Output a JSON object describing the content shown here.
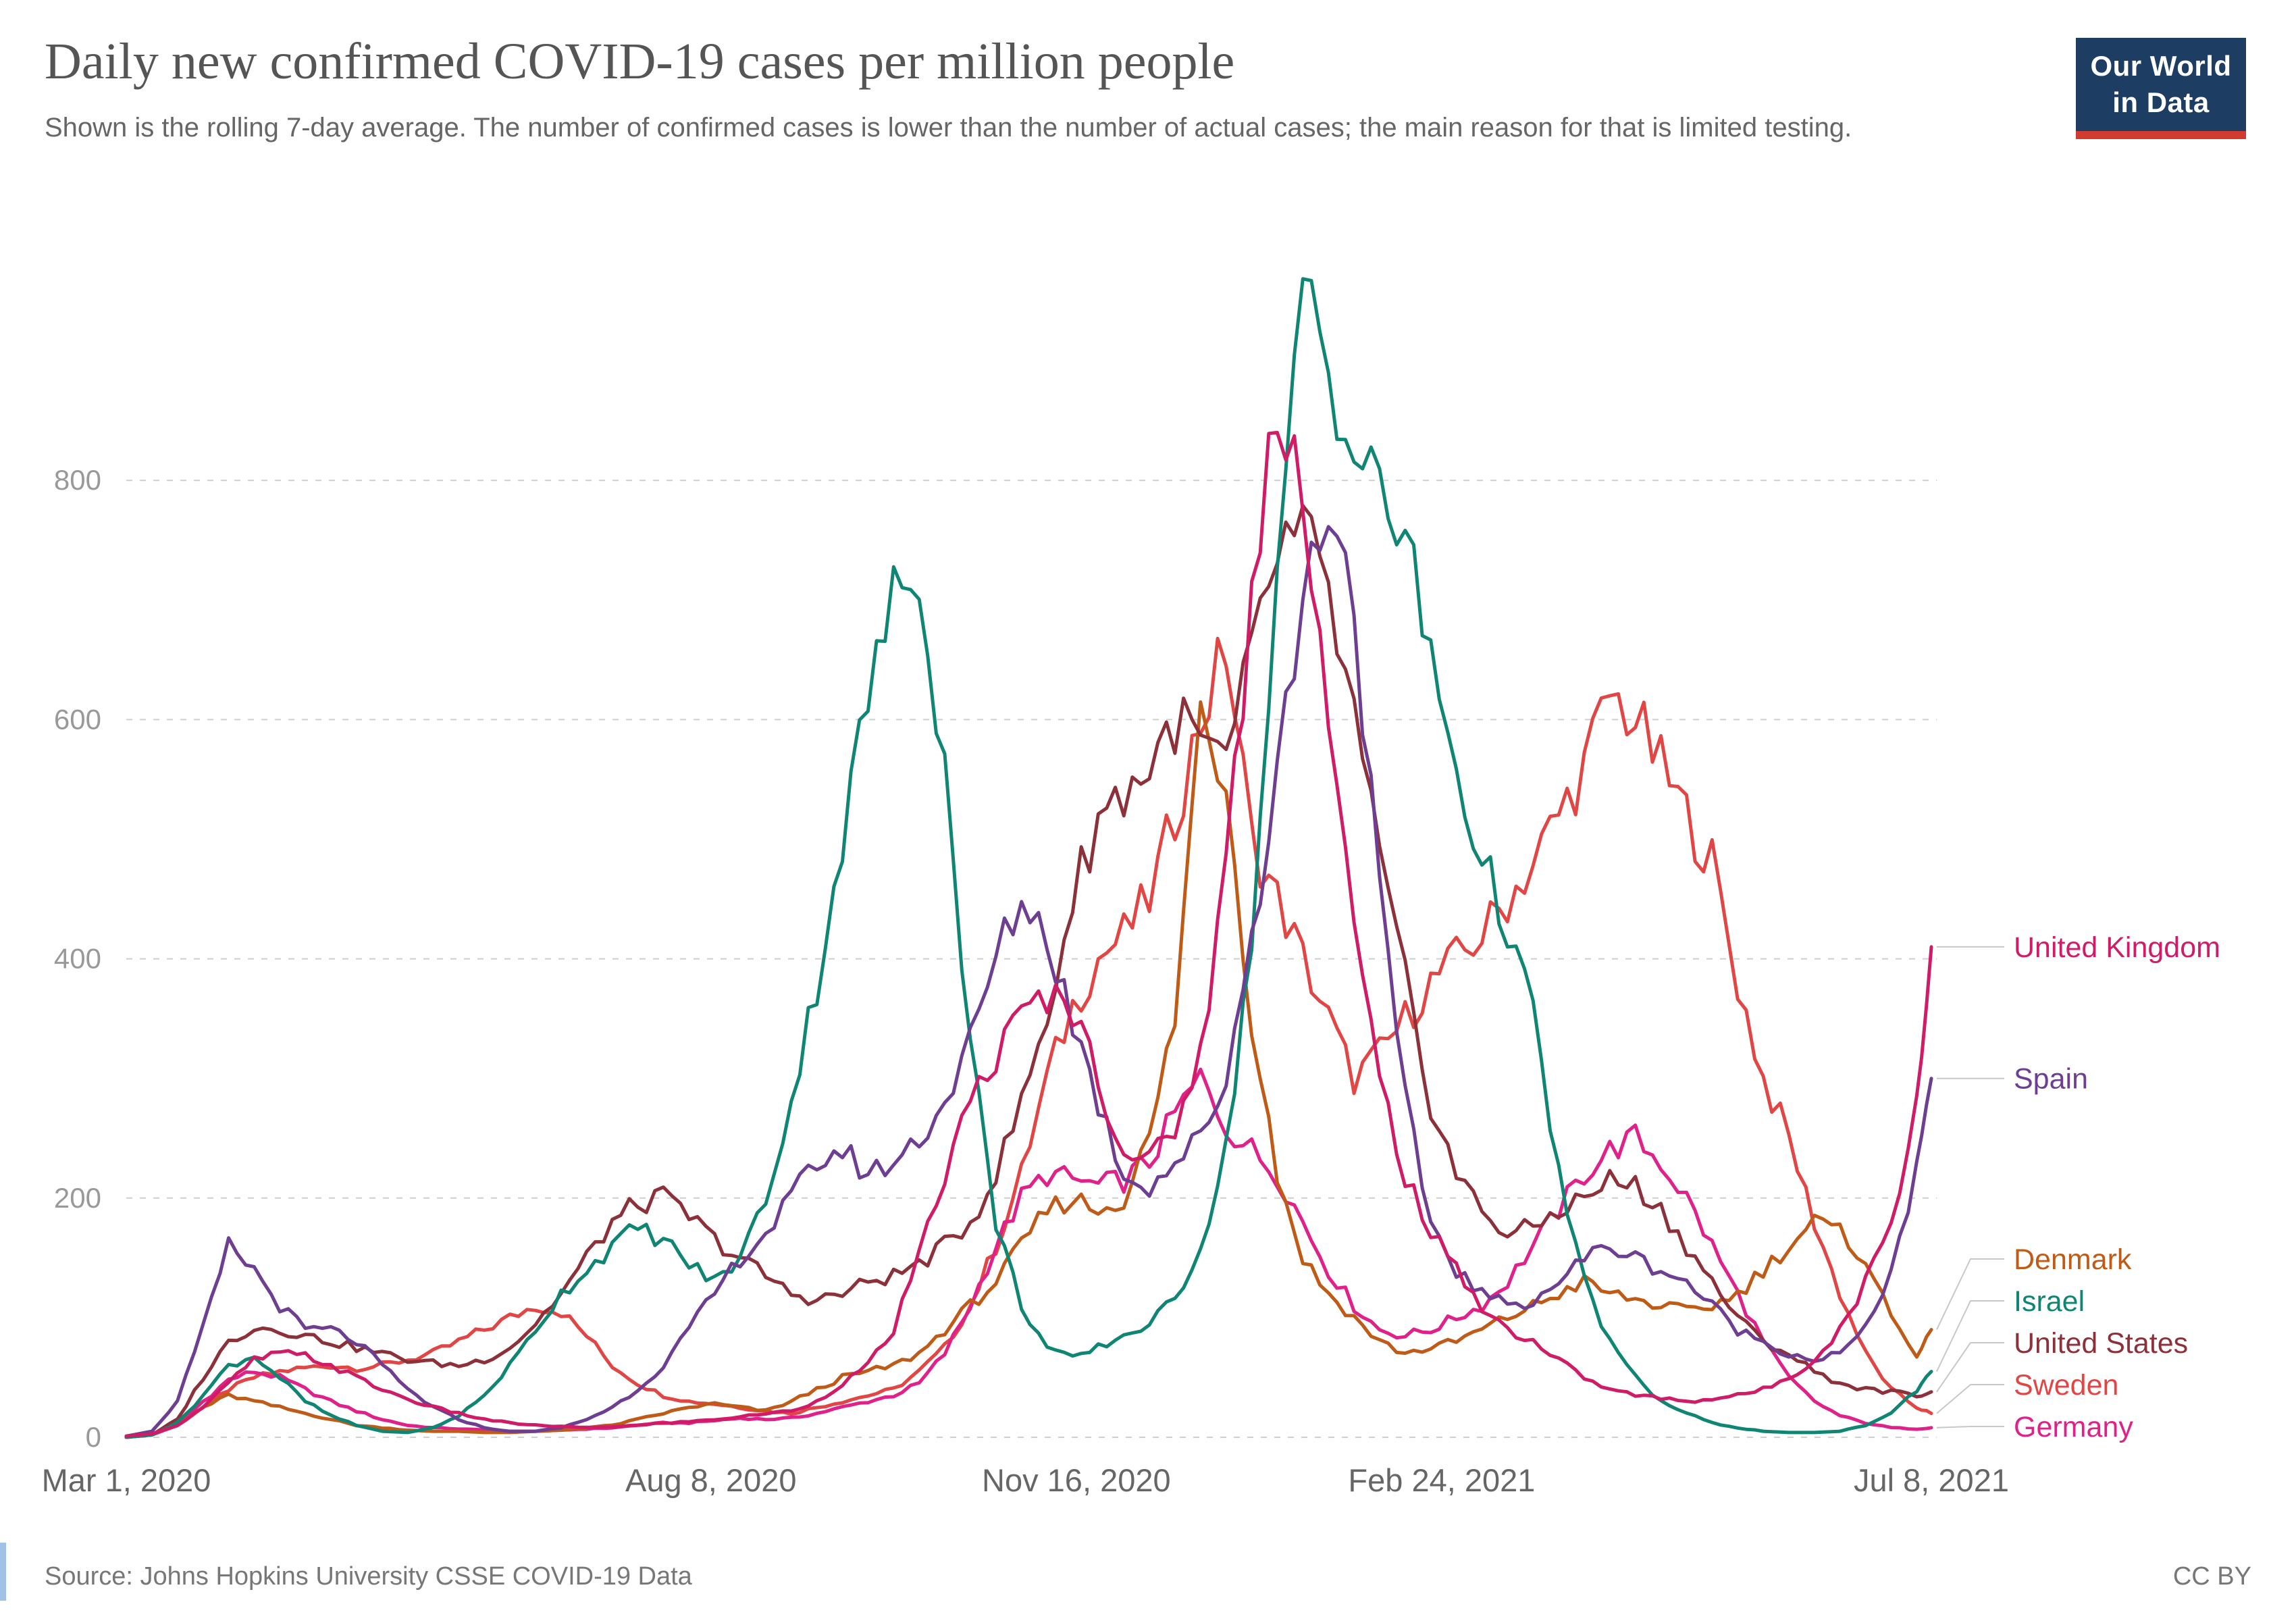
{
  "header": {
    "title": "Daily new confirmed COVID-19 cases per million people",
    "subtitle": "Shown is the rolling 7-day average. The number of confirmed cases is lower than the number of actual cases; the main reason for that is limited testing.",
    "logo": {
      "line1": "Our World",
      "line2": "in Data"
    }
  },
  "footer": {
    "source": "Source: Johns Hopkins University CSSE COVID-19 Data",
    "license": "CC BY"
  },
  "chart_data": {
    "type": "line",
    "title": "Daily new confirmed COVID-19 cases per million people",
    "subtitle": "Shown is the rolling 7-day average.",
    "grid": "horizontal-dashed",
    "legend_position": "right-end-labels",
    "x_unit": "days since Mar 1, 2020",
    "xlim_days": [
      0,
      494
    ],
    "ylim": [
      0,
      1000
    ],
    "y_ticks": [
      0,
      200,
      400,
      600,
      800
    ],
    "x_tick_labels": [
      "Mar 1, 2020",
      "Aug 8, 2020",
      "Nov 16, 2020",
      "Feb 24, 2021",
      "Jul 8, 2021"
    ],
    "x_tick_days": [
      0,
      160,
      260,
      360,
      494
    ],
    "x_days": [
      0,
      7,
      14,
      21,
      28,
      35,
      42,
      49,
      56,
      63,
      70,
      77,
      84,
      91,
      98,
      105,
      112,
      119,
      126,
      133,
      140,
      147,
      154,
      161,
      168,
      175,
      182,
      189,
      196,
      203,
      210,
      217,
      224,
      231,
      238,
      245,
      252,
      259,
      266,
      273,
      280,
      287,
      294,
      301,
      308,
      315,
      322,
      329,
      336,
      343,
      350,
      357,
      364,
      371,
      378,
      385,
      392,
      399,
      406,
      413,
      420,
      427,
      434,
      441,
      448,
      455,
      462,
      469,
      476,
      483,
      490,
      494
    ],
    "series": [
      {
        "name": "United Kingdom",
        "color": "#d01c66",
        "values": [
          1,
          3,
          10,
          25,
          45,
          65,
          70,
          68,
          60,
          50,
          40,
          32,
          25,
          20,
          15,
          12,
          10,
          9,
          8,
          9,
          10,
          12,
          13,
          15,
          17,
          20,
          22,
          30,
          45,
          60,
          90,
          150,
          220,
          280,
          320,
          350,
          370,
          360,
          300,
          240,
          230,
          260,
          320,
          480,
          700,
          880,
          800,
          600,
          420,
          300,
          220,
          170,
          140,
          110,
          90,
          80,
          65,
          50,
          40,
          35,
          33,
          30,
          32,
          35,
          40,
          50,
          65,
          90,
          130,
          180,
          280,
          410
        ]
      },
      {
        "name": "Spain",
        "color": "#6d3e91",
        "values": [
          1,
          5,
          30,
          90,
          160,
          140,
          110,
          90,
          90,
          80,
          60,
          40,
          25,
          15,
          8,
          5,
          5,
          8,
          15,
          25,
          40,
          60,
          90,
          120,
          150,
          170,
          200,
          230,
          240,
          220,
          230,
          250,
          280,
          330,
          400,
          450,
          420,
          350,
          280,
          220,
          210,
          230,
          250,
          300,
          420,
          560,
          700,
          790,
          700,
          450,
          280,
          180,
          140,
          120,
          110,
          115,
          130,
          150,
          160,
          150,
          140,
          130,
          110,
          90,
          80,
          70,
          65,
          70,
          90,
          140,
          220,
          300
        ]
      },
      {
        "name": "Denmark",
        "color": "#bf5b17",
        "values": [
          0,
          3,
          10,
          25,
          35,
          30,
          25,
          20,
          15,
          10,
          8,
          6,
          5,
          5,
          4,
          4,
          5,
          6,
          8,
          10,
          15,
          20,
          25,
          28,
          25,
          22,
          30,
          40,
          50,
          55,
          60,
          70,
          90,
          110,
          130,
          160,
          190,
          200,
          190,
          200,
          250,
          350,
          610,
          550,
          350,
          220,
          150,
          120,
          100,
          80,
          70,
          75,
          80,
          90,
          100,
          110,
          120,
          130,
          120,
          115,
          110,
          105,
          110,
          120,
          140,
          160,
          180,
          170,
          150,
          100,
          70,
          90
        ]
      },
      {
        "name": "Israel",
        "color": "#0f8573",
        "values": [
          0,
          2,
          12,
          35,
          60,
          68,
          50,
          30,
          18,
          10,
          5,
          4,
          8,
          18,
          35,
          60,
          90,
          120,
          140,
          160,
          175,
          165,
          145,
          130,
          150,
          200,
          280,
          380,
          500,
          620,
          700,
          730,
          560,
          330,
          180,
          110,
          75,
          65,
          75,
          85,
          95,
          115,
          160,
          240,
          420,
          700,
          975,
          900,
          820,
          790,
          750,
          650,
          560,
          480,
          430,
          350,
          220,
          130,
          80,
          50,
          30,
          20,
          12,
          8,
          5,
          4,
          4,
          5,
          10,
          20,
          40,
          55
        ]
      },
      {
        "name": "United States",
        "color": "#8c3039",
        "values": [
          0,
          2,
          15,
          50,
          80,
          92,
          90,
          85,
          80,
          75,
          70,
          65,
          62,
          60,
          65,
          75,
          95,
          120,
          150,
          180,
          195,
          200,
          185,
          165,
          150,
          135,
          120,
          115,
          120,
          130,
          135,
          145,
          160,
          180,
          220,
          280,
          350,
          450,
          520,
          540,
          560,
          600,
          580,
          560,
          650,
          740,
          755,
          700,
          600,
          480,
          380,
          280,
          220,
          190,
          170,
          175,
          190,
          200,
          215,
          210,
          190,
          160,
          130,
          100,
          80,
          70,
          55,
          45,
          40,
          38,
          35,
          38
        ]
      },
      {
        "name": "Sweden",
        "color": "#e24644",
        "values": [
          0,
          2,
          10,
          25,
          40,
          50,
          55,
          58,
          60,
          58,
          60,
          65,
          70,
          80,
          90,
          100,
          110,
          105,
          85,
          60,
          45,
          35,
          30,
          28,
          25,
          22,
          20,
          25,
          30,
          35,
          40,
          55,
          75,
          110,
          160,
          220,
          300,
          360,
          400,
          420,
          450,
          520,
          600,
          660,
          500,
          450,
          400,
          350,
          300,
          320,
          350,
          380,
          400,
          420,
          450,
          480,
          520,
          560,
          620,
          600,
          560,
          520,
          480,
          380,
          300,
          250,
          180,
          120,
          70,
          40,
          25,
          20
        ]
      },
      {
        "name": "Germany",
        "color": "#e0218a",
        "values": [
          0,
          2,
          10,
          30,
          48,
          55,
          50,
          40,
          30,
          22,
          15,
          10,
          8,
          7,
          6,
          5,
          5,
          6,
          7,
          8,
          10,
          12,
          12,
          14,
          16,
          15,
          16,
          20,
          25,
          30,
          35,
          45,
          70,
          110,
          160,
          200,
          220,
          215,
          210,
          215,
          230,
          270,
          300,
          260,
          240,
          220,
          180,
          140,
          110,
          90,
          85,
          90,
          100,
          110,
          130,
          160,
          190,
          220,
          240,
          250,
          230,
          200,
          160,
          120,
          80,
          50,
          30,
          18,
          12,
          8,
          7,
          8
        ]
      }
    ]
  }
}
